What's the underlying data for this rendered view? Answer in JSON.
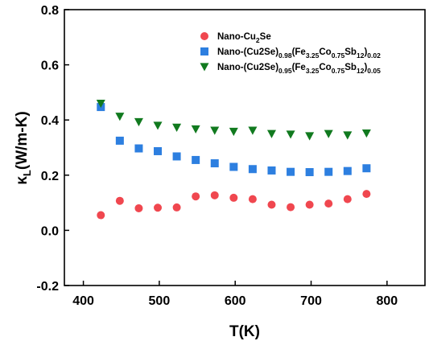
{
  "chart_data": {
    "type": "scatter",
    "title": "",
    "xlabel": "T(K)",
    "ylabel": {
      "main": "κ",
      "sub": "L",
      "rest": "(W/m-K)"
    },
    "xlim": [
      375,
      850
    ],
    "ylim": [
      -0.2,
      0.8
    ],
    "xticks": [
      400,
      500,
      600,
      700,
      800
    ],
    "yticks": [
      -0.2,
      0.0,
      0.2,
      0.4,
      0.6,
      0.8
    ],
    "xtick_labels": [
      "400",
      "500",
      "600",
      "700",
      "800"
    ],
    "ytick_labels": [
      "-0.2",
      "0.0",
      "0.2",
      "0.4",
      "0.6",
      "0.8"
    ],
    "grid": false,
    "legend_position": "top-right",
    "series": [
      {
        "name": [
          {
            "t": "Nano-Cu"
          },
          {
            "t": "2",
            "s": "sub"
          },
          {
            "t": "Se"
          }
        ],
        "marker": "circle",
        "color": "#f0474f",
        "x": [
          423,
          448,
          473,
          498,
          523,
          548,
          573,
          598,
          623,
          648,
          673,
          698,
          723,
          748,
          773
        ],
        "y": [
          0.055,
          0.107,
          0.08,
          0.082,
          0.083,
          0.123,
          0.127,
          0.118,
          0.113,
          0.093,
          0.084,
          0.093,
          0.097,
          0.113,
          0.132
        ]
      },
      {
        "name": [
          {
            "t": "Nano-(Cu2Se)"
          },
          {
            "t": "0.98",
            "s": "sub"
          },
          {
            "t": "(Fe"
          },
          {
            "t": "3.25",
            "s": "sub"
          },
          {
            "t": "Co"
          },
          {
            "t": "0.75",
            "s": "sub"
          },
          {
            "t": "Sb"
          },
          {
            "t": "12",
            "s": "sub"
          },
          {
            "t": ")"
          },
          {
            "t": "0.02",
            "s": "sub"
          }
        ],
        "marker": "square",
        "color": "#2d7fe0",
        "x": [
          423,
          448,
          473,
          498,
          523,
          548,
          573,
          598,
          623,
          648,
          673,
          698,
          723,
          748,
          773
        ],
        "y": [
          0.447,
          0.325,
          0.297,
          0.287,
          0.268,
          0.255,
          0.243,
          0.23,
          0.222,
          0.217,
          0.212,
          0.211,
          0.212,
          0.215,
          0.225
        ]
      },
      {
        "name": [
          {
            "t": "Nano-(Cu2Se)"
          },
          {
            "t": "0.95",
            "s": "sub"
          },
          {
            "t": "(Fe"
          },
          {
            "t": "3.25",
            "s": "sub"
          },
          {
            "t": "Co"
          },
          {
            "t": "0.75",
            "s": "sub"
          },
          {
            "t": "Sb"
          },
          {
            "t": "12",
            "s": "sub"
          },
          {
            "t": ")"
          },
          {
            "t": "0.05",
            "s": "sub"
          }
        ],
        "marker": "triangle-down",
        "color": "#117a1f",
        "x": [
          423,
          448,
          473,
          498,
          523,
          548,
          573,
          598,
          623,
          648,
          673,
          698,
          723,
          748,
          773
        ],
        "y": [
          0.46,
          0.413,
          0.393,
          0.38,
          0.373,
          0.367,
          0.362,
          0.358,
          0.362,
          0.35,
          0.348,
          0.342,
          0.35,
          0.345,
          0.352
        ]
      }
    ]
  }
}
